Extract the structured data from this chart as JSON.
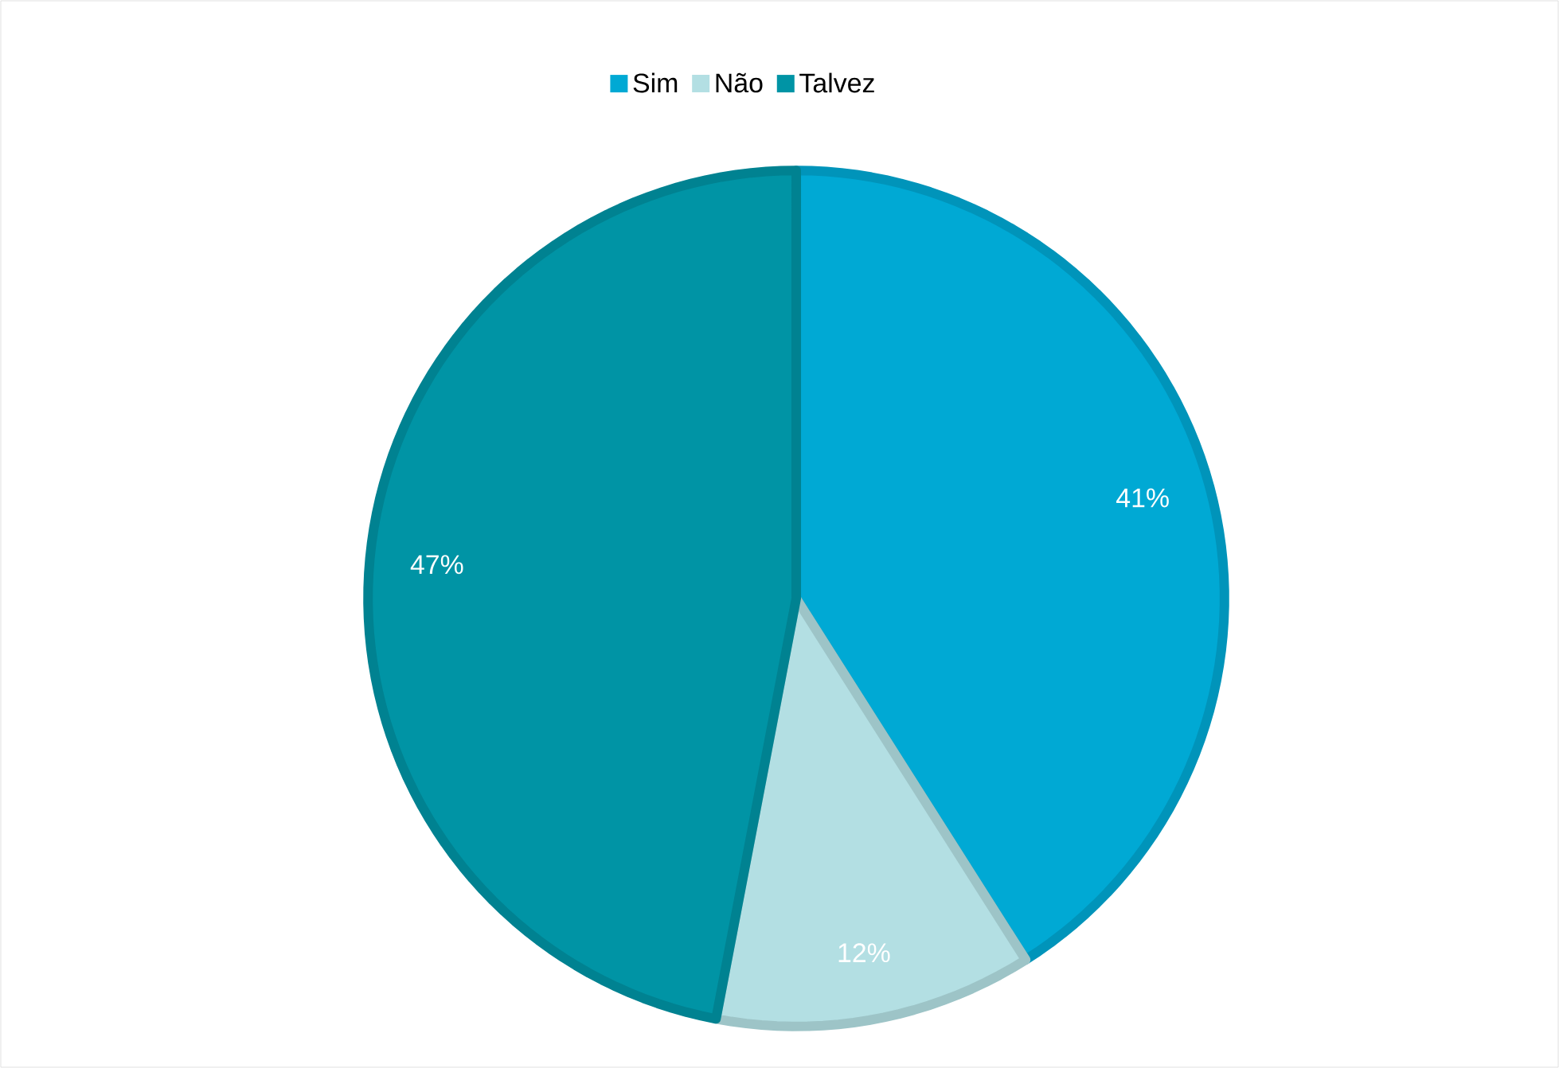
{
  "chart_data": {
    "type": "pie",
    "categories": [
      "Sim",
      "Não",
      "Talvez"
    ],
    "values": [
      41,
      12,
      47
    ],
    "value_labels": [
      "41%",
      "12%",
      "47%"
    ],
    "colors": [
      "#00a9d4",
      "#b3dfe3",
      "#0094a5"
    ],
    "legend": "top"
  }
}
